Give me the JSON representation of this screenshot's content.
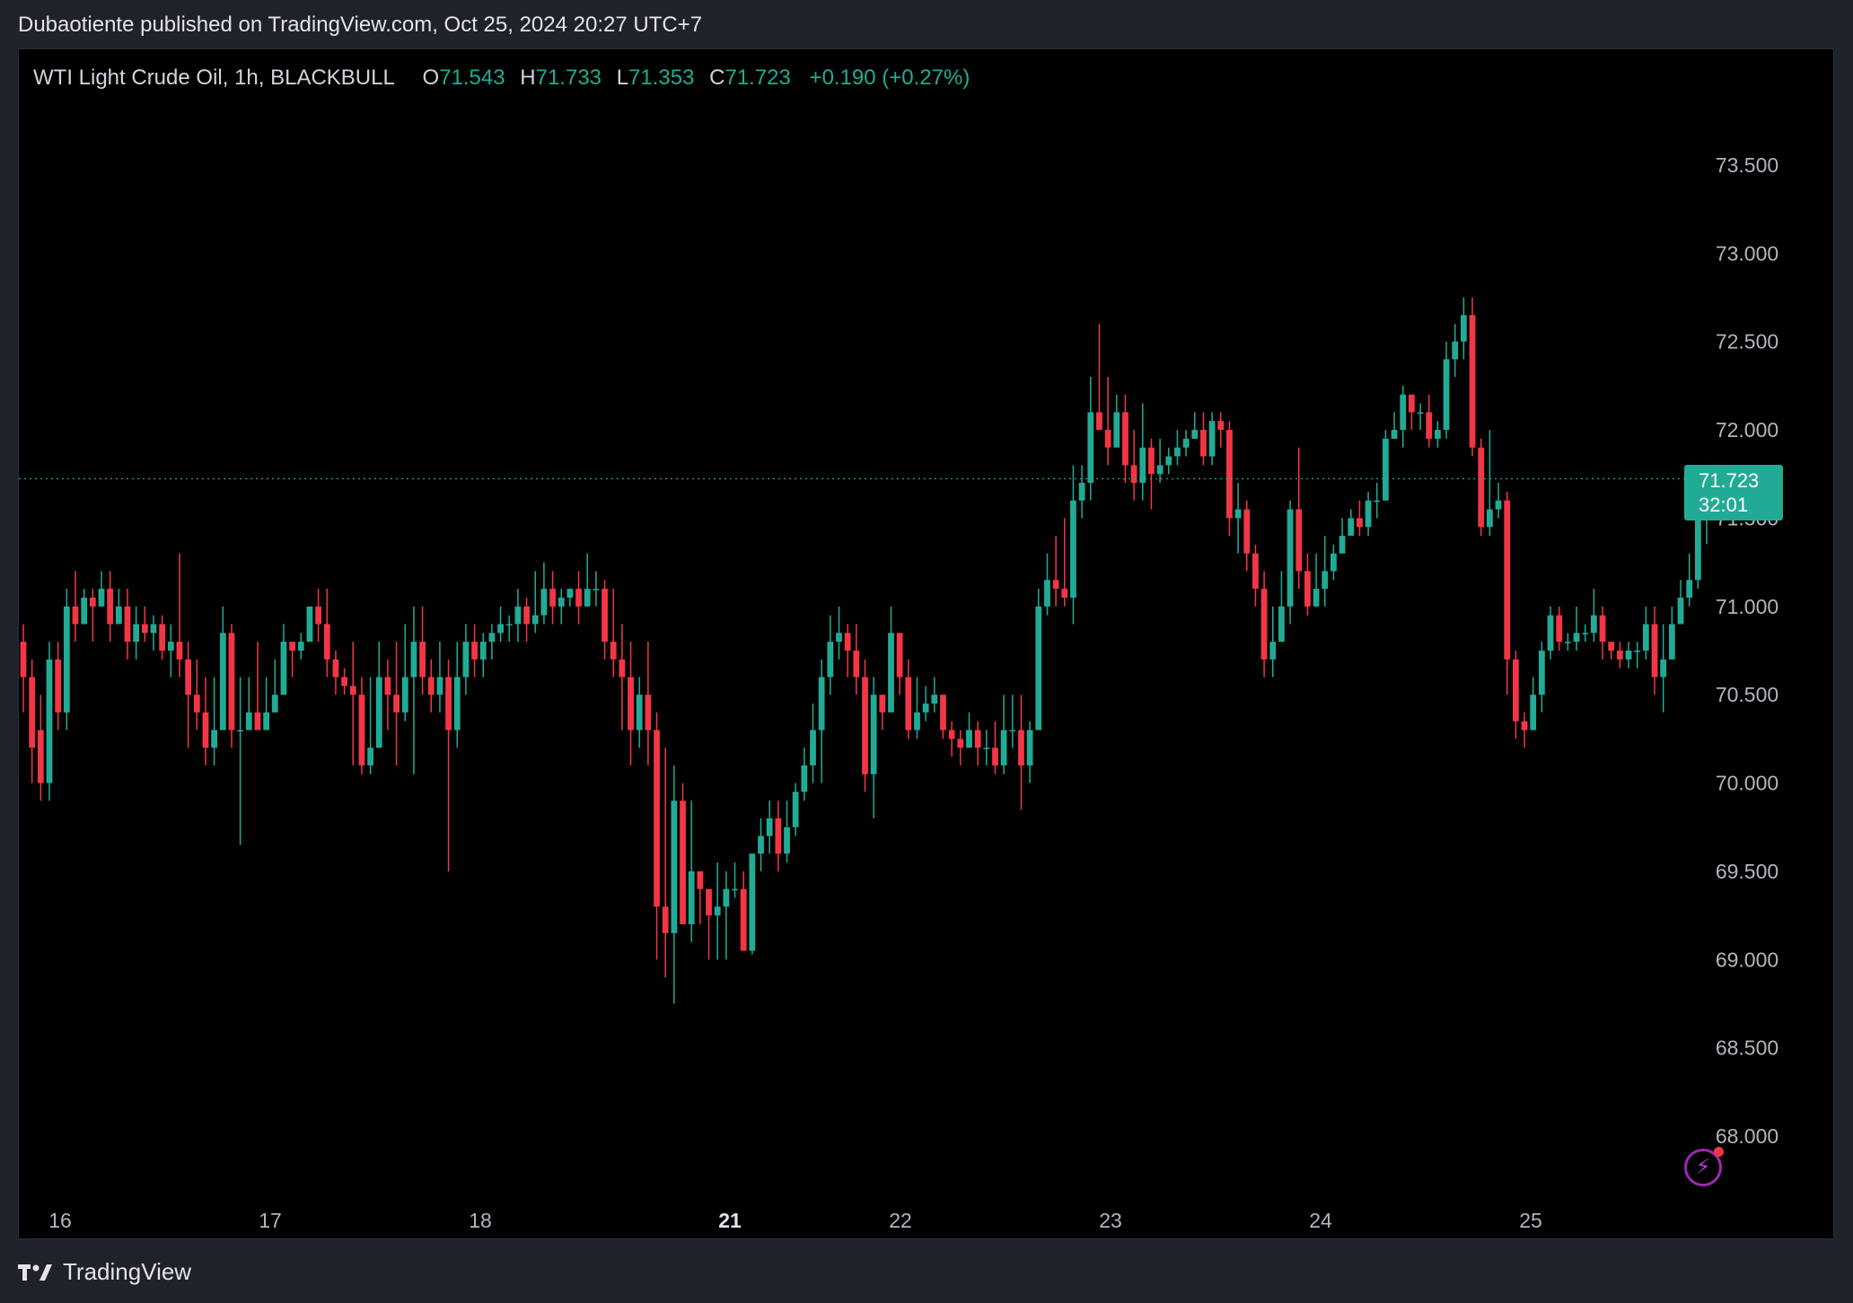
{
  "header": {
    "published_line": "Dubaotiente published on TradingView.com, Oct 25, 2024 20:27 UTC+7"
  },
  "legend": {
    "symbol": "WTI Light Crude Oil, 1h, BLACKBULL",
    "open_label": "O",
    "open": "71.543",
    "high_label": "H",
    "high": "71.733",
    "low_label": "L",
    "low": "71.353",
    "close_label": "C",
    "close": "71.723",
    "change": "+0.190 (+0.27%)"
  },
  "price_tag": {
    "price": "71.723",
    "countdown": "32:01"
  },
  "footer": {
    "brand": "TradingView"
  },
  "icons": {
    "alert": "bolt-icon",
    "logo": "tradingview-logo-icon"
  },
  "colors": {
    "up": "#22ab94",
    "down": "#f23645",
    "background": "#000000",
    "text": "#b2b5be"
  },
  "chart_data": {
    "type": "candlestick",
    "interval": "1h",
    "y_axis": {
      "min": 67.65,
      "max": 73.85,
      "ticks": [
        "73.500",
        "73.000",
        "72.500",
        "72.000",
        "71.500",
        "71.000",
        "70.500",
        "70.000",
        "69.500",
        "69.000",
        "68.500",
        "68.000"
      ]
    },
    "x_axis_labels": [
      "16",
      "17",
      "18",
      "21",
      "22",
      "23",
      "24",
      "25"
    ],
    "current_price": 71.723,
    "candles": [
      [
        70.8,
        70.6,
        70.9,
        70.4
      ],
      [
        70.6,
        70.2,
        70.7,
        70.0
      ],
      [
        70.3,
        70.0,
        70.5,
        69.9
      ],
      [
        70.0,
        70.7,
        70.8,
        69.9
      ],
      [
        70.7,
        70.4,
        70.8,
        70.3
      ],
      [
        70.4,
        71.0,
        71.1,
        70.3
      ],
      [
        71.0,
        70.9,
        71.2,
        70.8
      ],
      [
        70.9,
        71.05,
        71.1,
        70.9
      ],
      [
        71.05,
        71.0,
        71.1,
        70.8
      ],
      [
        71.0,
        71.1,
        71.2,
        71.0
      ],
      [
        71.1,
        70.9,
        71.2,
        70.8
      ],
      [
        70.9,
        71.0,
        71.1,
        70.9
      ],
      [
        71.0,
        70.8,
        71.1,
        70.7
      ],
      [
        70.8,
        70.9,
        71.0,
        70.7
      ],
      [
        70.9,
        70.85,
        71.0,
        70.8
      ],
      [
        70.85,
        70.9,
        70.95,
        70.75
      ],
      [
        70.9,
        70.75,
        70.95,
        70.7
      ],
      [
        70.75,
        70.8,
        70.9,
        70.6
      ],
      [
        70.8,
        70.7,
        71.3,
        70.6
      ],
      [
        70.7,
        70.5,
        70.8,
        70.2
      ],
      [
        70.5,
        70.4,
        70.7,
        70.3
      ],
      [
        70.4,
        70.2,
        70.6,
        70.1
      ],
      [
        70.2,
        70.3,
        70.6,
        70.1
      ],
      [
        70.3,
        70.85,
        71.0,
        70.3
      ],
      [
        70.85,
        70.3,
        70.9,
        70.2
      ],
      [
        70.3,
        70.3,
        70.6,
        69.65
      ],
      [
        70.3,
        70.4,
        70.6,
        70.3
      ],
      [
        70.4,
        70.3,
        70.8,
        70.3
      ],
      [
        70.3,
        70.4,
        70.6,
        70.3
      ],
      [
        70.4,
        70.5,
        70.7,
        70.4
      ],
      [
        70.5,
        70.8,
        70.9,
        70.5
      ],
      [
        70.8,
        70.75,
        70.8,
        70.6
      ],
      [
        70.75,
        70.8,
        70.85,
        70.7
      ],
      [
        70.8,
        71.0,
        71.0,
        70.8
      ],
      [
        71.0,
        70.9,
        71.1,
        70.8
      ],
      [
        70.9,
        70.7,
        71.1,
        70.6
      ],
      [
        70.7,
        70.6,
        70.75,
        70.5
      ],
      [
        70.6,
        70.55,
        70.65,
        70.5
      ],
      [
        70.55,
        70.5,
        70.8,
        70.1
      ],
      [
        70.5,
        70.1,
        70.6,
        70.05
      ],
      [
        70.1,
        70.2,
        70.6,
        70.05
      ],
      [
        70.2,
        70.6,
        70.8,
        70.2
      ],
      [
        70.6,
        70.5,
        70.7,
        70.3
      ],
      [
        70.5,
        70.4,
        70.8,
        70.1
      ],
      [
        70.4,
        70.6,
        70.9,
        70.35
      ],
      [
        70.6,
        70.8,
        71.0,
        70.05
      ],
      [
        70.8,
        70.6,
        71.0,
        70.5
      ],
      [
        70.6,
        70.5,
        70.7,
        70.4
      ],
      [
        70.5,
        70.6,
        70.8,
        70.4
      ],
      [
        70.6,
        70.3,
        70.7,
        69.5
      ],
      [
        70.3,
        70.6,
        70.8,
        70.2
      ],
      [
        70.6,
        70.8,
        70.9,
        70.5
      ],
      [
        70.8,
        70.7,
        70.9,
        70.6
      ],
      [
        70.7,
        70.8,
        70.85,
        70.6
      ],
      [
        70.8,
        70.85,
        70.9,
        70.7
      ],
      [
        70.85,
        70.9,
        71.0,
        70.8
      ],
      [
        70.9,
        70.9,
        70.95,
        70.8
      ],
      [
        70.9,
        71.0,
        71.1,
        70.8
      ],
      [
        71.0,
        70.9,
        71.05,
        70.8
      ],
      [
        70.9,
        70.95,
        71.2,
        70.85
      ],
      [
        70.95,
        71.1,
        71.25,
        70.9
      ],
      [
        71.1,
        71.0,
        71.2,
        70.9
      ],
      [
        71.0,
        71.05,
        71.1,
        70.9
      ],
      [
        71.05,
        71.1,
        71.1,
        71.0
      ],
      [
        71.1,
        71.0,
        71.2,
        70.9
      ],
      [
        71.0,
        71.1,
        71.3,
        71.0
      ],
      [
        71.1,
        71.1,
        71.2,
        71.0
      ],
      [
        71.1,
        70.8,
        71.15,
        70.7
      ],
      [
        70.8,
        70.7,
        71.1,
        70.6
      ],
      [
        70.7,
        70.6,
        70.9,
        70.3
      ],
      [
        70.6,
        70.3,
        70.8,
        70.1
      ],
      [
        70.3,
        70.5,
        70.6,
        70.2
      ],
      [
        70.5,
        70.3,
        70.8,
        70.1
      ],
      [
        70.3,
        69.3,
        70.4,
        69.0
      ],
      [
        69.3,
        69.15,
        70.2,
        68.9
      ],
      [
        69.15,
        69.9,
        70.1,
        68.75
      ],
      [
        69.9,
        69.2,
        70.0,
        69.2
      ],
      [
        69.2,
        69.5,
        69.9,
        69.1
      ],
      [
        69.5,
        69.4,
        69.5,
        69.2
      ],
      [
        69.4,
        69.25,
        69.3,
        69.0
      ],
      [
        69.25,
        69.3,
        69.55,
        69.0
      ],
      [
        69.3,
        69.4,
        69.5,
        69.0
      ],
      [
        69.4,
        69.4,
        69.55,
        69.35
      ],
      [
        69.4,
        69.05,
        69.5,
        69.05
      ],
      [
        69.05,
        69.6,
        69.6,
        69.03
      ],
      [
        69.6,
        69.7,
        69.8,
        69.5
      ],
      [
        69.7,
        69.8,
        69.9,
        69.6
      ],
      [
        69.8,
        69.6,
        69.9,
        69.5
      ],
      [
        69.6,
        69.75,
        69.9,
        69.55
      ],
      [
        69.75,
        69.95,
        70.0,
        69.7
      ],
      [
        69.95,
        70.1,
        70.2,
        69.9
      ],
      [
        70.1,
        70.3,
        70.45,
        70.0
      ],
      [
        70.3,
        70.6,
        70.7,
        70.0
      ],
      [
        70.6,
        70.8,
        70.95,
        70.5
      ],
      [
        70.8,
        70.85,
        71.0,
        70.7
      ],
      [
        70.85,
        70.75,
        70.9,
        70.6
      ],
      [
        70.75,
        70.6,
        70.9,
        70.5
      ],
      [
        70.6,
        70.05,
        70.7,
        69.95
      ],
      [
        70.05,
        70.5,
        70.6,
        69.8
      ],
      [
        70.5,
        70.4,
        70.5,
        70.3
      ],
      [
        70.4,
        70.85,
        71.0,
        70.4
      ],
      [
        70.85,
        70.6,
        70.85,
        70.5
      ],
      [
        70.6,
        70.3,
        70.7,
        70.25
      ],
      [
        70.3,
        70.4,
        70.6,
        70.25
      ],
      [
        70.4,
        70.45,
        70.55,
        70.35
      ],
      [
        70.45,
        70.5,
        70.6,
        70.4
      ],
      [
        70.5,
        70.3,
        70.5,
        70.25
      ],
      [
        70.3,
        70.25,
        70.35,
        70.15
      ],
      [
        70.25,
        70.2,
        70.3,
        70.1
      ],
      [
        70.2,
        70.3,
        70.4,
        70.2
      ],
      [
        70.3,
        70.2,
        70.35,
        70.1
      ],
      [
        70.2,
        70.2,
        70.3,
        70.1
      ],
      [
        70.2,
        70.1,
        70.35,
        70.05
      ],
      [
        70.1,
        70.3,
        70.5,
        70.05
      ],
      [
        70.3,
        70.3,
        70.5,
        70.2
      ],
      [
        70.3,
        70.1,
        70.5,
        69.85
      ],
      [
        70.1,
        70.3,
        70.35,
        70.0
      ],
      [
        70.3,
        71.0,
        71.1,
        70.3
      ],
      [
        71.0,
        71.15,
        71.3,
        70.95
      ],
      [
        71.15,
        71.1,
        71.4,
        71.0
      ],
      [
        71.1,
        71.05,
        71.5,
        71.0
      ],
      [
        71.05,
        71.6,
        71.8,
        70.9
      ],
      [
        71.6,
        71.7,
        71.8,
        71.5
      ],
      [
        71.7,
        72.1,
        72.3,
        71.6
      ],
      [
        72.1,
        72.0,
        72.6,
        72.0
      ],
      [
        72.0,
        71.9,
        72.3,
        71.8
      ],
      [
        71.9,
        72.1,
        72.2,
        72.0
      ],
      [
        72.1,
        71.8,
        72.2,
        71.7
      ],
      [
        71.8,
        71.7,
        72.0,
        71.6
      ],
      [
        71.7,
        71.9,
        72.15,
        71.6
      ],
      [
        71.9,
        71.75,
        71.95,
        71.55
      ],
      [
        71.75,
        71.8,
        71.95,
        71.7
      ],
      [
        71.8,
        71.85,
        71.9,
        71.75
      ],
      [
        71.85,
        71.9,
        72.0,
        71.8
      ],
      [
        71.9,
        71.95,
        72.0,
        71.85
      ],
      [
        71.95,
        72.0,
        72.1,
        71.95
      ],
      [
        72.0,
        71.85,
        72.1,
        71.8
      ],
      [
        71.85,
        72.05,
        72.1,
        71.8
      ],
      [
        72.05,
        72.0,
        72.1,
        71.9
      ],
      [
        72.0,
        71.5,
        72.05,
        71.4
      ],
      [
        71.5,
        71.55,
        71.7,
        71.3
      ],
      [
        71.55,
        71.3,
        71.6,
        71.2
      ],
      [
        71.3,
        71.1,
        71.35,
        71.0
      ],
      [
        71.1,
        70.7,
        71.2,
        70.6
      ],
      [
        70.7,
        70.8,
        71.0,
        70.6
      ],
      [
        70.8,
        71.0,
        71.2,
        70.9
      ],
      [
        71.0,
        71.55,
        71.6,
        70.9
      ],
      [
        71.55,
        71.2,
        71.9,
        71.1
      ],
      [
        71.2,
        71.0,
        71.3,
        70.95
      ],
      [
        71.0,
        71.1,
        71.3,
        71.0
      ],
      [
        71.1,
        71.2,
        71.4,
        71.0
      ],
      [
        71.2,
        71.3,
        71.35,
        71.15
      ],
      [
        71.3,
        71.4,
        71.5,
        71.3
      ],
      [
        71.4,
        71.5,
        71.55,
        71.4
      ],
      [
        71.5,
        71.45,
        71.6,
        71.4
      ],
      [
        71.45,
        71.6,
        71.65,
        71.4
      ],
      [
        71.6,
        71.6,
        71.7,
        71.5
      ],
      [
        71.6,
        71.95,
        72.0,
        71.6
      ],
      [
        71.95,
        72.0,
        72.1,
        71.95
      ],
      [
        72.0,
        72.2,
        72.25,
        71.9
      ],
      [
        72.2,
        72.1,
        72.2,
        72.0
      ],
      [
        72.1,
        72.1,
        72.15,
        72.0
      ],
      [
        72.1,
        71.95,
        72.2,
        71.9
      ],
      [
        71.95,
        72.0,
        72.05,
        71.9
      ],
      [
        72.0,
        72.4,
        72.5,
        71.95
      ],
      [
        72.4,
        72.5,
        72.6,
        72.3
      ],
      [
        72.5,
        72.65,
        72.75,
        72.4
      ],
      [
        72.65,
        71.9,
        72.75,
        71.85
      ],
      [
        71.9,
        71.45,
        71.95,
        71.4
      ],
      [
        71.45,
        71.55,
        72.0,
        71.4
      ],
      [
        71.55,
        71.6,
        71.7,
        71.5
      ],
      [
        71.6,
        70.7,
        71.65,
        70.5
      ],
      [
        70.7,
        70.35,
        70.75,
        70.25
      ],
      [
        70.35,
        70.3,
        70.4,
        70.2
      ],
      [
        70.3,
        70.5,
        70.6,
        70.3
      ],
      [
        70.5,
        70.75,
        70.8,
        70.4
      ],
      [
        70.75,
        70.95,
        71.0,
        70.7
      ],
      [
        70.95,
        70.8,
        71.0,
        70.75
      ],
      [
        70.8,
        70.8,
        70.85,
        70.75
      ],
      [
        70.8,
        70.85,
        71.0,
        70.75
      ],
      [
        70.85,
        70.85,
        70.9,
        70.8
      ],
      [
        70.85,
        70.95,
        71.1,
        70.8
      ],
      [
        70.95,
        70.8,
        71.0,
        70.7
      ],
      [
        70.8,
        70.75,
        70.8,
        70.7
      ],
      [
        70.75,
        70.7,
        70.8,
        70.65
      ],
      [
        70.7,
        70.75,
        70.8,
        70.65
      ],
      [
        70.75,
        70.75,
        70.8,
        70.65
      ],
      [
        70.75,
        70.9,
        71.0,
        70.7
      ],
      [
        70.9,
        70.6,
        71.0,
        70.5
      ],
      [
        70.6,
        70.7,
        70.9,
        70.4
      ],
      [
        70.7,
        70.9,
        71.0,
        70.7
      ],
      [
        70.9,
        71.05,
        71.15,
        70.9
      ],
      [
        71.05,
        71.15,
        71.3,
        71.0
      ],
      [
        71.15,
        71.55,
        71.7,
        71.1
      ],
      [
        71.55,
        71.723,
        71.733,
        71.353
      ]
    ]
  }
}
